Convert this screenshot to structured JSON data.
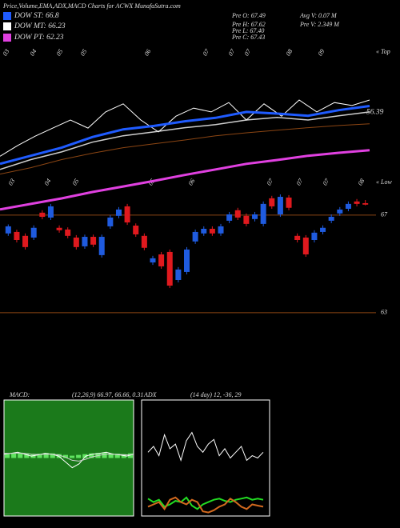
{
  "header": {
    "title": "Price,Volume,EMA,ADX,MACD Charts for ACWX  MunafaSutra.com",
    "legend": [
      {
        "name": "DOW ST: 66.8",
        "color": "#1f5bff"
      },
      {
        "name": "DOW MT: 66.23",
        "color": "#ffffff"
      },
      {
        "name": "DOW PT: 62.23",
        "color": "#e040e0"
      }
    ],
    "stats": [
      "Pre  O: 67.49",
      "Avg  V: 0.07  M",
      "Pre  H: 67.62",
      "Pre   V: 2.349  M",
      "Pre   L: 67.40",
      "Pre  C: 67.43"
    ]
  },
  "chart_data": [
    {
      "type": "candlestick",
      "up_color": "#1f5bdf",
      "down_color": "#e0191e",
      "grid_color": "#8b4513",
      "corner_label": "« Low",
      "date_labels": [
        "03",
        "04",
        "05",
        "05",
        "06",
        "07",
        "07",
        "07",
        "08"
      ],
      "ylim": [
        62.7,
        68.44
      ],
      "yticks": [
        63,
        67
      ],
      "open": [
        66.25,
        66.31,
        66.15,
        66.08,
        67.1,
        66.9,
        66.48,
        66.41,
        66.08,
        65.72,
        66.11,
        65.36,
        66.54,
        66.97,
        67.36,
        66.57,
        66.15,
        65.06,
        65.39,
        65.49,
        64.34,
        64.67,
        65.92,
        66.25,
        66.44,
        66.25,
        66.77,
        67.2,
        66.97,
        66.84,
        66.64,
        67.69,
        67.03,
        67.72,
        66.15,
        66.08,
        65.98,
        66.31,
        66.77,
        67.07,
        67.26,
        67.56,
        67.49
      ],
      "high": [
        66.62,
        66.4,
        66.25,
        66.58,
        67.2,
        67.46,
        66.58,
        66.5,
        66.18,
        66.2,
        66.2,
        66.2,
        67.0,
        67.33,
        67.46,
        66.66,
        66.25,
        65.33,
        65.49,
        65.59,
        64.87,
        65.69,
        66.41,
        66.54,
        66.54,
        66.64,
        67.13,
        67.3,
        67.07,
        67.13,
        67.56,
        67.79,
        67.85,
        67.82,
        66.25,
        66.18,
        66.38,
        66.58,
        67.03,
        67.33,
        67.56,
        67.66,
        67.62
      ],
      "low": [
        66.15,
        65.88,
        65.59,
        65.98,
        66.83,
        66.8,
        66.28,
        66.05,
        65.59,
        65.62,
        65.69,
        65.26,
        66.44,
        66.87,
        66.6,
        66.11,
        65.56,
        64.96,
        64.8,
        64.01,
        64.24,
        64.57,
        65.82,
        66.15,
        66.15,
        66.15,
        66.67,
        66.8,
        66.54,
        66.74,
        66.54,
        67.26,
        66.93,
        67.2,
        65.88,
        65.29,
        65.88,
        66.21,
        66.67,
        66.97,
        67.16,
        67.36,
        67.4
      ],
      "close": [
        66.54,
        65.98,
        65.69,
        66.48,
        66.93,
        67.36,
        66.38,
        66.15,
        65.69,
        66.11,
        65.79,
        66.11,
        66.9,
        67.23,
        66.7,
        66.21,
        65.66,
        65.23,
        64.9,
        64.11,
        64.77,
        65.59,
        66.31,
        66.44,
        66.25,
        66.54,
        67.03,
        66.9,
        66.64,
        67.03,
        67.46,
        67.36,
        67.75,
        67.3,
        65.98,
        65.39,
        66.28,
        66.48,
        66.93,
        67.23,
        67.46,
        67.46,
        67.43
      ]
    },
    {
      "type": "line",
      "corner_label": "« Top",
      "end_label": "56.39",
      "date_labels": [
        "03",
        "04",
        "05",
        "05",
        "06",
        "07",
        "07",
        "07",
        "08",
        "09"
      ],
      "ylim": [
        30,
        70
      ],
      "series": [
        {
          "color": "#8b4513",
          "width": 1,
          "values": [
            40.4,
            41.9,
            43.8,
            45.3,
            46.6,
            47.5,
            48.4,
            49.4,
            50.1,
            50.7,
            51.3,
            51.8,
            52.2
          ]
        },
        {
          "color": "#e040e0",
          "width": 3,
          "values": [
            32.1,
            33.4,
            34.7,
            36.2,
            37.5,
            38.8,
            40.2,
            41.5,
            42.8,
            43.7,
            44.7,
            45.4,
            46.0
          ]
        },
        {
          "color": "#cccccc",
          "width": 1.5,
          "values": [
            41.5,
            43.8,
            45.6,
            47.9,
            49.4,
            50.3,
            51.3,
            52.0,
            53.1,
            53.7,
            53.1,
            54.1,
            55.0
          ]
        },
        {
          "color": "#ffffff",
          "width": 1,
          "values": [
            44.6,
            47.1,
            49.3,
            51.2,
            53.1,
            51.2,
            55.0,
            56.9,
            53.1,
            50.3,
            54.0,
            55.9,
            55.0,
            57.2,
            53.1,
            56.9,
            54.0,
            57.8,
            55.0,
            57.2,
            56.5,
            57.8
          ]
        },
        {
          "color": "#1f5bff",
          "width": 3,
          "values": [
            42.8,
            44.7,
            46.6,
            49.1,
            50.9,
            51.7,
            52.8,
            53.6,
            55.0,
            54.6,
            54.1,
            55.4,
            56.39
          ]
        }
      ]
    },
    {
      "type": "macd",
      "title": "MACD:",
      "subtitle": "(12,26,9) 66.97, 66.66, 0.31",
      "background": "#1b7a1b",
      "ylim": [
        -1.5,
        1.5
      ],
      "histogram": {
        "color": "#5fe35f",
        "values": [
          0.1,
          0.12,
          0.14,
          0.12,
          0.1,
          0.11,
          0.13,
          0.12,
          0.1,
          0.08,
          0.06,
          0.08,
          0.1,
          0.12,
          0.13,
          0.14,
          0.12,
          0.11,
          0.1,
          0.12
        ]
      },
      "series": [
        {
          "color": "#ffffff",
          "values": [
            0.1,
            0.12,
            0.15,
            0.1,
            0.05,
            0.08,
            0.12,
            0.1,
            0.05,
            -0.1,
            -0.25,
            -0.15,
            0.05,
            0.1,
            0.12,
            0.15,
            0.1,
            0.08,
            0.05,
            0.1
          ]
        },
        {
          "color": "#cfcfcf",
          "values": [
            0.12,
            0.12,
            0.13,
            0.12,
            0.1,
            0.09,
            0.1,
            0.1,
            0.08,
            0.02,
            -0.06,
            -0.08,
            -0.03,
            0.03,
            0.07,
            0.1,
            0.1,
            0.09,
            0.08,
            0.09
          ]
        }
      ]
    },
    {
      "type": "adx",
      "title": "ADX",
      "subtitle": "(14  day)  12,  -36,  29",
      "background": "#000000",
      "ylim": [
        0,
        100
      ],
      "series": [
        {
          "color": "#ffffff",
          "values": [
            55,
            60,
            52,
            70,
            58,
            62,
            48,
            65,
            72,
            60,
            55,
            62,
            66,
            52,
            58,
            50,
            55,
            60,
            48,
            52,
            50,
            55
          ]
        },
        {
          "color": "#22dd22",
          "values": [
            15,
            12,
            14,
            8,
            10,
            13,
            12,
            16,
            9,
            6,
            10,
            12,
            14,
            15,
            13,
            12,
            14,
            15,
            16,
            14,
            15,
            14
          ]
        },
        {
          "color": "#d2691e",
          "values": [
            8,
            10,
            12,
            6,
            14,
            16,
            12,
            10,
            14,
            12,
            4,
            3,
            5,
            8,
            10,
            15,
            12,
            8,
            6,
            10,
            9,
            8
          ]
        }
      ]
    }
  ]
}
